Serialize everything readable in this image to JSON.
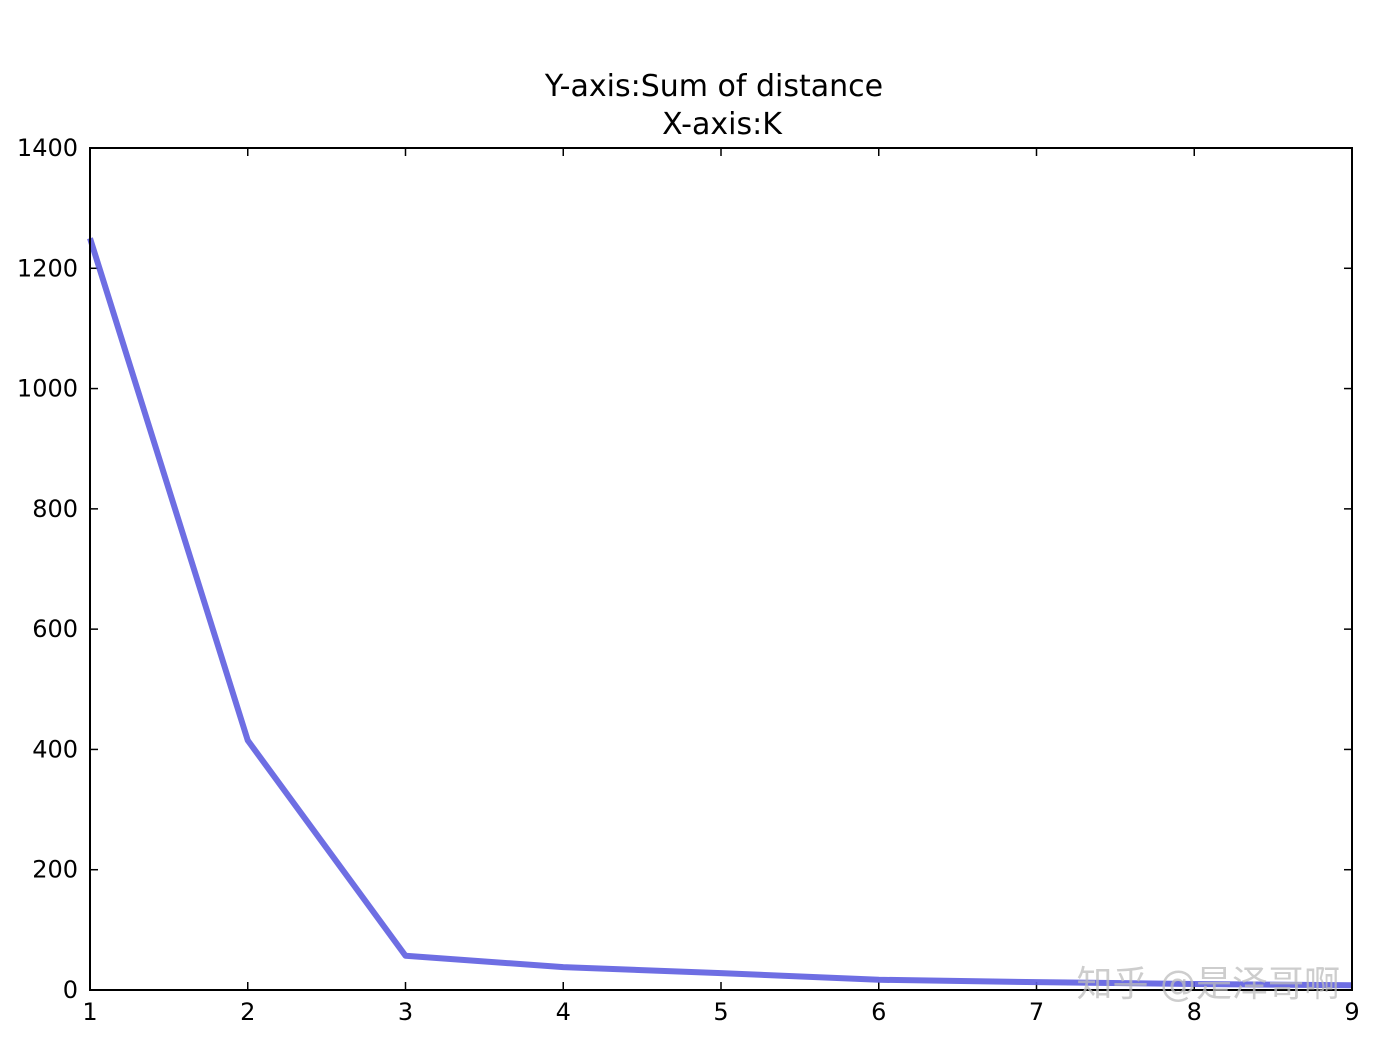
{
  "chart_data": {
    "type": "line",
    "title_lines": [
      "Y-axis:Sum of distance",
      "X-axis:K"
    ],
    "xlabel": "",
    "ylabel": "",
    "x": [
      1,
      2,
      3,
      4,
      5,
      6,
      7,
      8,
      9
    ],
    "series": [
      {
        "values": [
          1250,
          415,
          57,
          38,
          28,
          17,
          13,
          10,
          8
        ],
        "color": "#5e5ee0"
      }
    ],
    "xlim": [
      1,
      9
    ],
    "ylim": [
      0,
      1400
    ],
    "xticks": [
      "1",
      "2",
      "3",
      "4",
      "5",
      "6",
      "7",
      "8",
      "9"
    ],
    "yticks": [
      "0",
      "200",
      "400",
      "600",
      "800",
      "1000",
      "1200",
      "1400"
    ],
    "grid": false
  },
  "watermark": "知乎 @是泽哥啊"
}
